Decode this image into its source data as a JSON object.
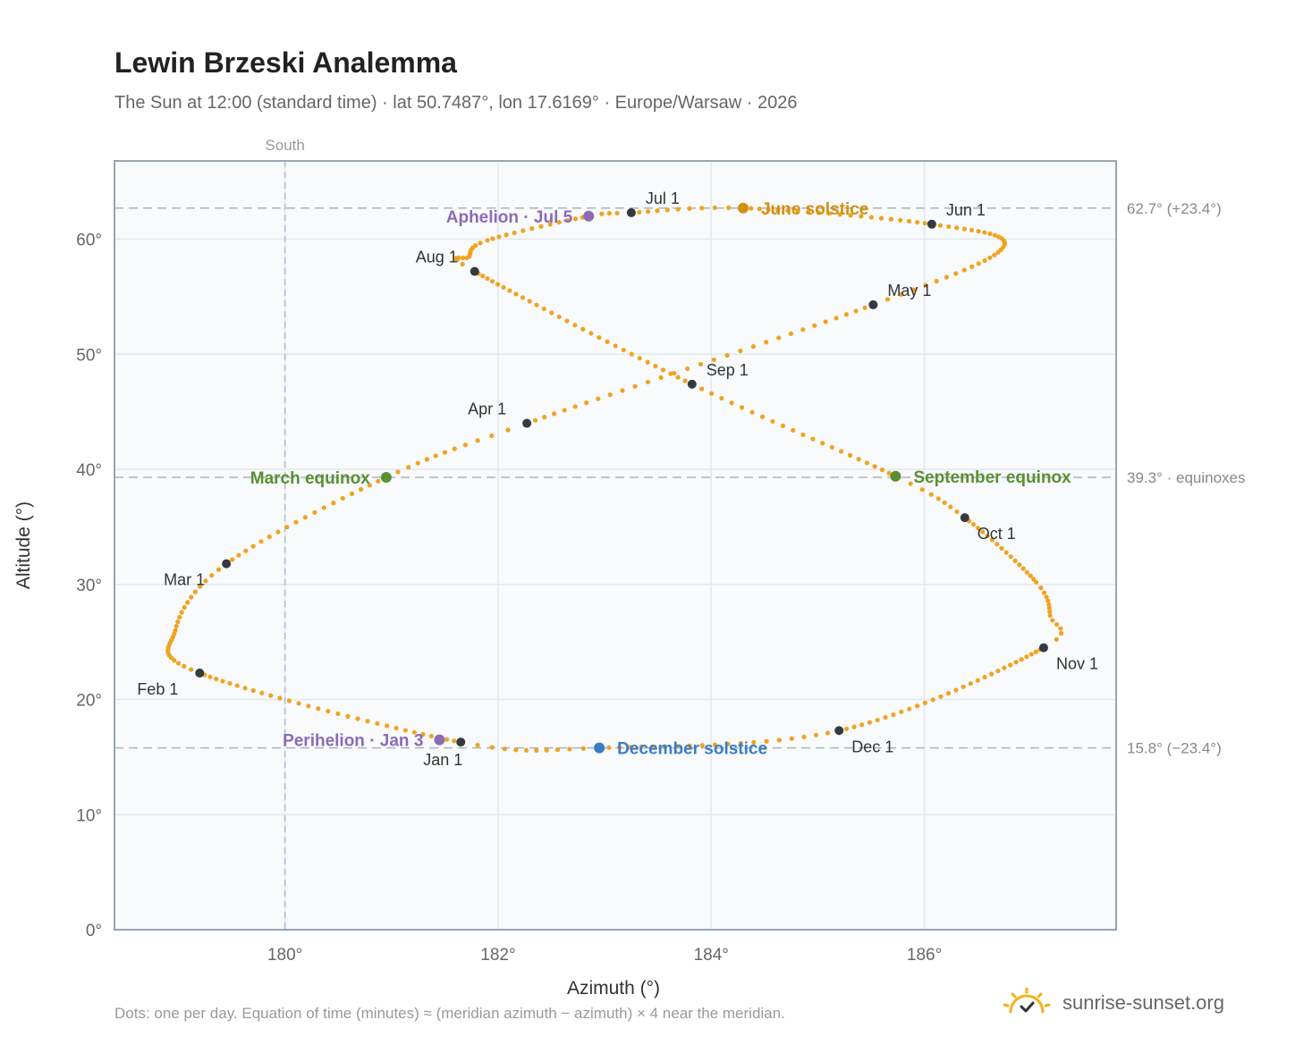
{
  "header": {
    "title": "Lewin Brzeski Analemma",
    "subtitle": "The Sun at 12:00 (standard time) · lat 50.7487°, lon 17.6169° · Europe/Warsaw · 2026"
  },
  "footer": {
    "note": "Dots: one per day. Equation of time (minutes) ≈ (meridian azimuth − azimuth) × 4 near the meridian.",
    "brand": "sunrise-sunset.org",
    "brand_icon": "sun-check-icon"
  },
  "colors": {
    "path": "#f0a321",
    "month": "#333a40",
    "solstice_june": "#d4900c",
    "solstice_december": "#3a7dc4",
    "equinox": "#5a8f32",
    "apsis": "#8c6bb5",
    "plot_bg": "#f8fafc",
    "grid": "#e2e8ee",
    "ref_line": "#aab4bd",
    "axis_text": "#666666"
  },
  "chart_data": {
    "type": "scatter",
    "title": "Lewin Brzeski Analemma",
    "subtitle": "The Sun at 12:00 (standard time) · lat 50.7487°, lon 17.6169° · Europe/Warsaw · 2026",
    "xlabel": "Azimuth (°)",
    "ylabel": "Altitude (°)",
    "xlim": [
      178.4,
      187.8
    ],
    "ylim": [
      0,
      66.8
    ],
    "x_ticks": [
      180,
      182,
      184,
      186
    ],
    "x_tick_labels": [
      "180°",
      "182°",
      "184°",
      "186°"
    ],
    "y_ticks": [
      0,
      10,
      20,
      30,
      40,
      50,
      60
    ],
    "y_tick_labels": [
      "0°",
      "10°",
      "20°",
      "30°",
      "40°",
      "50°",
      "60°"
    ],
    "grid": true,
    "meridian": {
      "x": 180,
      "label": "South"
    },
    "reference_lines": [
      {
        "y": 62.7,
        "label": "62.7° (+23.4°)"
      },
      {
        "y": 39.3,
        "label": "39.3° · equinoxes"
      },
      {
        "y": 15.8,
        "label": "15.8° (−23.4°)"
      }
    ],
    "anchors": [
      {
        "day": 0,
        "x": 181.65,
        "y": 16.3
      },
      {
        "day": 31,
        "x": 179.2,
        "y": 22.3
      },
      {
        "day": 46,
        "x": 178.97,
        "y": 26.0
      },
      {
        "day": 59,
        "x": 179.45,
        "y": 31.8
      },
      {
        "day": 78,
        "x": 180.95,
        "y": 39.3
      },
      {
        "day": 90,
        "x": 182.27,
        "y": 44.0
      },
      {
        "day": 120,
        "x": 185.52,
        "y": 54.3
      },
      {
        "day": 136,
        "x": 186.74,
        "y": 59.3
      },
      {
        "day": 151,
        "x": 186.07,
        "y": 61.3
      },
      {
        "day": 171,
        "x": 184.3,
        "y": 62.7
      },
      {
        "day": 181,
        "x": 183.25,
        "y": 62.3
      },
      {
        "day": 185,
        "x": 182.85,
        "y": 62.0
      },
      {
        "day": 198,
        "x": 181.9,
        "y": 59.9
      },
      {
        "day": 205,
        "x": 181.73,
        "y": 58.5
      },
      {
        "day": 212,
        "x": 181.78,
        "y": 57.2
      },
      {
        "day": 243,
        "x": 183.82,
        "y": 47.4
      },
      {
        "day": 265,
        "x": 185.73,
        "y": 39.4
      },
      {
        "day": 273,
        "x": 186.38,
        "y": 35.8
      },
      {
        "day": 290,
        "x": 187.05,
        "y": 30.2
      },
      {
        "day": 298,
        "x": 187.18,
        "y": 27.3
      },
      {
        "day": 304,
        "x": 187.12,
        "y": 24.5
      },
      {
        "day": 334,
        "x": 185.2,
        "y": 17.3
      },
      {
        "day": 354,
        "x": 182.95,
        "y": 15.8
      },
      {
        "day": 365,
        "x": 181.65,
        "y": 16.3
      }
    ],
    "month_points": [
      {
        "label": "Jan 1",
        "x": 181.65,
        "y": 16.3,
        "pos": "below"
      },
      {
        "label": "Feb 1",
        "x": 179.2,
        "y": 22.3,
        "pos": "below-left"
      },
      {
        "label": "Mar 1",
        "x": 179.45,
        "y": 31.8,
        "pos": "below-left"
      },
      {
        "label": "Apr 1",
        "x": 182.27,
        "y": 44.0,
        "pos": "above-left"
      },
      {
        "label": "May 1",
        "x": 185.52,
        "y": 54.3,
        "pos": "above-right"
      },
      {
        "label": "Jun 1",
        "x": 186.07,
        "y": 61.3,
        "pos": "above-right"
      },
      {
        "label": "Jul 1",
        "x": 183.25,
        "y": 62.3,
        "pos": "above-right"
      },
      {
        "label": "Aug 1",
        "x": 181.78,
        "y": 57.2,
        "pos": "above-left"
      },
      {
        "label": "Sep 1",
        "x": 183.82,
        "y": 47.4,
        "pos": "above-right"
      },
      {
        "label": "Oct 1",
        "x": 186.38,
        "y": 35.8,
        "pos": "below-right"
      },
      {
        "label": "Nov 1",
        "x": 187.12,
        "y": 24.5,
        "pos": "below-right"
      },
      {
        "label": "Dec 1",
        "x": 185.2,
        "y": 17.3,
        "pos": "below-right"
      }
    ],
    "events": [
      {
        "label": "June solstice",
        "x": 184.3,
        "y": 62.7,
        "kind": "solstice_june",
        "side": "right"
      },
      {
        "label": "Aphelion · Jul 5",
        "x": 182.85,
        "y": 62.0,
        "kind": "apsis",
        "side": "left"
      },
      {
        "label": "March equinox",
        "x": 180.95,
        "y": 39.3,
        "kind": "equinox",
        "side": "left"
      },
      {
        "label": "September equinox",
        "x": 185.73,
        "y": 39.4,
        "kind": "equinox",
        "side": "right"
      },
      {
        "label": "Perihelion · Jan 3",
        "x": 181.45,
        "y": 16.5,
        "kind": "apsis",
        "side": "left"
      },
      {
        "label": "December solstice",
        "x": 182.95,
        "y": 15.8,
        "kind": "solstice_december",
        "side": "right"
      }
    ]
  }
}
